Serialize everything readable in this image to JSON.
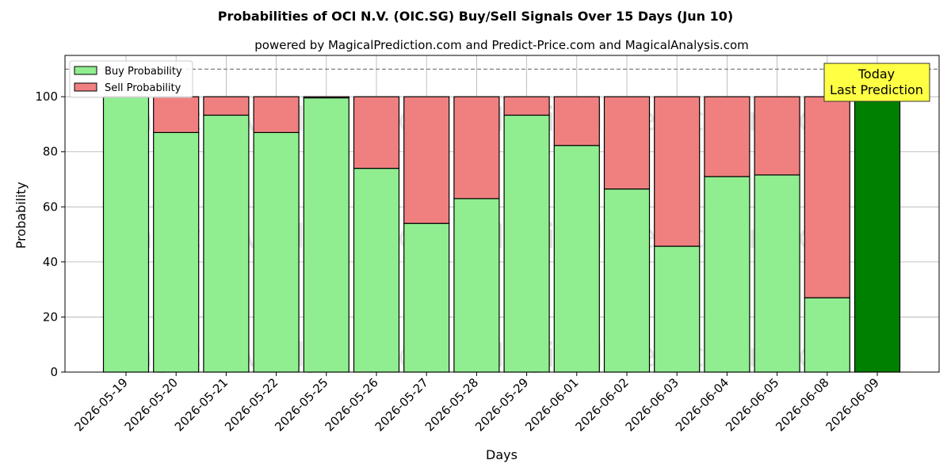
{
  "chart_data": {
    "type": "bar",
    "stacked": true,
    "title": "Probabilities of OCI N.V. (OIC.SG) Buy/Sell Signals Over 15 Days (Jun 10)",
    "subtitle": "powered by MagicalPrediction.com and Predict-Price.com and MagicalAnalysis.com",
    "xlabel": "Days",
    "ylabel": "Probability",
    "ylim": [
      0,
      115
    ],
    "yticks": [
      0,
      20,
      40,
      60,
      80,
      100
    ],
    "grid": true,
    "legend_position": "top-left",
    "reference_line": {
      "y": 110,
      "style": "dashed"
    },
    "categories": [
      "2026-05-19",
      "2026-05-20",
      "2026-05-21",
      "2026-05-22",
      "2026-05-25",
      "2026-05-26",
      "2026-05-27",
      "2026-05-28",
      "2026-05-29",
      "2026-06-01",
      "2026-06-02",
      "2026-06-03",
      "2026-06-04",
      "2026-06-05",
      "2026-06-08",
      "2026-06-09"
    ],
    "series": [
      {
        "name": "Buy Probability",
        "color": "#90ee90",
        "values": [
          100,
          87,
          93.3,
          87,
          99.6,
          74,
          54,
          63,
          93.3,
          82.3,
          66.5,
          45.7,
          71,
          71.6,
          27,
          100
        ]
      },
      {
        "name": "Sell Probability",
        "color": "#f08080",
        "values": [
          0,
          13,
          6.7,
          13,
          0.4,
          26,
          46,
          37,
          6.7,
          17.7,
          33.5,
          54.3,
          29,
          28.4,
          73,
          0
        ]
      }
    ],
    "highlight": {
      "index": 15,
      "color": "#008000"
    },
    "annotation": {
      "lines": [
        "Today",
        "Last Prediction"
      ],
      "background": "#ffff44"
    },
    "watermarks": [
      "MagicalAnalysis.com",
      "MagicalPrediction.com"
    ]
  }
}
